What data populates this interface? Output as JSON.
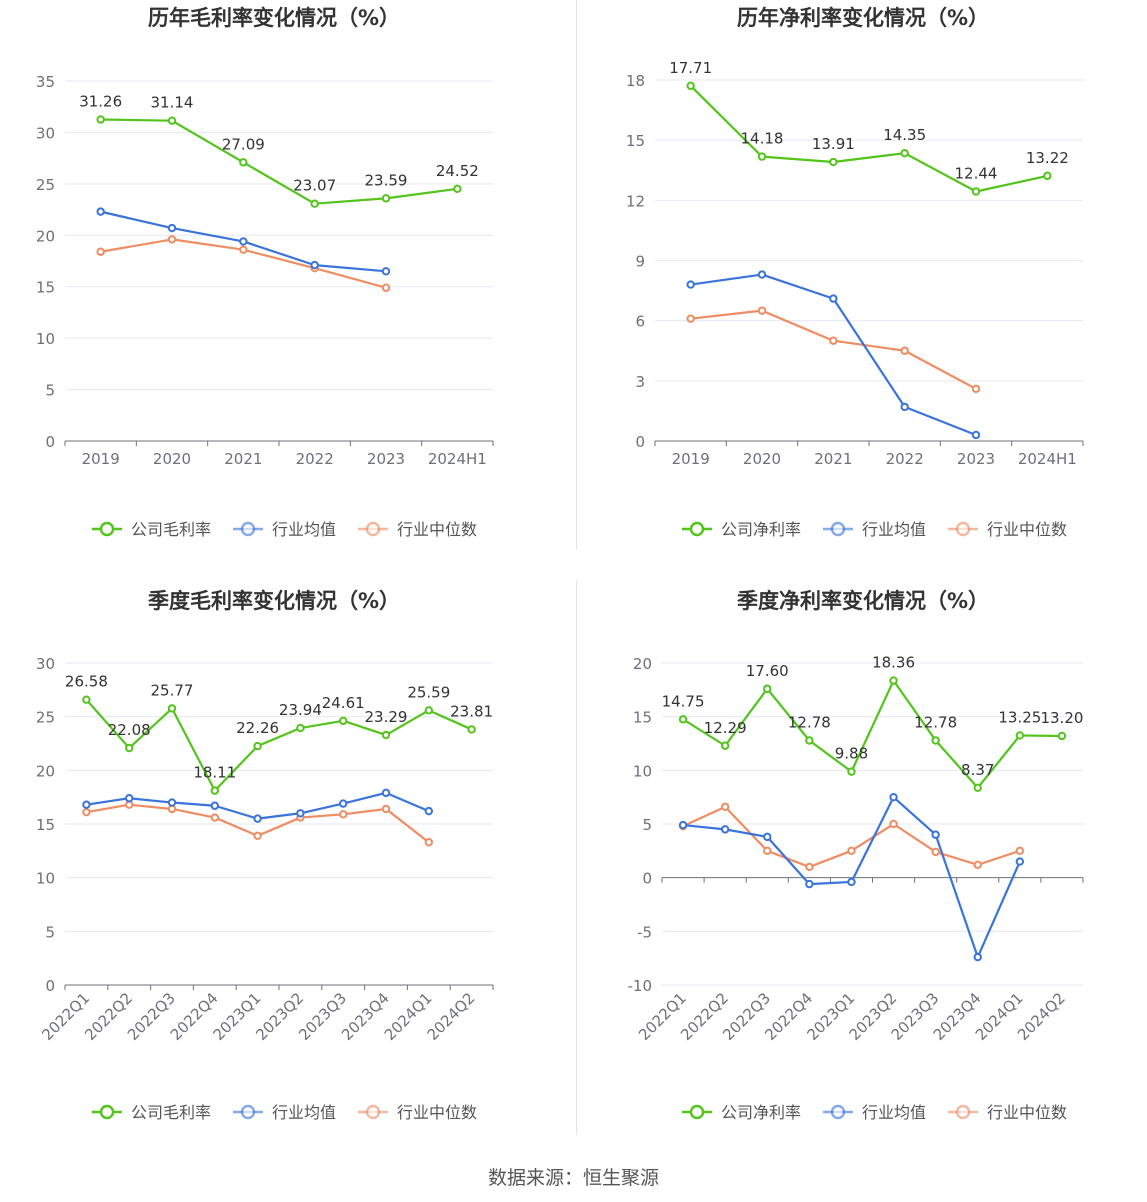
{
  "source": "数据来源：恒生聚源",
  "colors": {
    "company": "#52c41a",
    "industry_avg": "#3a73dc",
    "industry_median": "#f08c62",
    "grid": "#e6e9f2",
    "axis": "#6e7079",
    "title": "#333333"
  },
  "chart_data": [
    {
      "id": "annual-gross",
      "type": "line",
      "title": "历年毛利率变化情况（%）",
      "categories": [
        "2019",
        "2020",
        "2021",
        "2022",
        "2023",
        "2024H1"
      ],
      "ylim": [
        0,
        35
      ],
      "yticks": [
        0,
        5,
        10,
        15,
        20,
        25,
        30,
        35
      ],
      "legend_position": "bottom",
      "series": [
        {
          "name": "公司毛利率",
          "key": "company",
          "values": [
            31.26,
            31.14,
            27.09,
            23.07,
            23.59,
            24.52
          ],
          "labels": [
            "31.26",
            "31.14",
            "27.09",
            "23.07",
            "23.59",
            "24.52"
          ]
        },
        {
          "name": "行业均值",
          "key": "industry_avg",
          "values": [
            22.3,
            20.7,
            19.4,
            17.1,
            16.5,
            null
          ]
        },
        {
          "name": "行业中位数",
          "key": "industry_median",
          "values": [
            18.4,
            19.6,
            18.6,
            16.8,
            14.9,
            null
          ]
        }
      ]
    },
    {
      "id": "annual-net",
      "type": "line",
      "title": "历年净利率变化情况（%）",
      "categories": [
        "2019",
        "2020",
        "2021",
        "2022",
        "2023",
        "2024H1"
      ],
      "ylim": [
        0,
        18
      ],
      "yticks": [
        0,
        3,
        6,
        9,
        12,
        15,
        18
      ],
      "legend_position": "bottom",
      "series": [
        {
          "name": "公司净利率",
          "key": "company",
          "values": [
            17.71,
            14.18,
            13.91,
            14.35,
            12.44,
            13.22
          ],
          "labels": [
            "17.71",
            "14.18",
            "13.91",
            "14.35",
            "12.44",
            "13.22"
          ]
        },
        {
          "name": "行业均值",
          "key": "industry_avg",
          "values": [
            7.8,
            8.3,
            7.1,
            1.7,
            0.3,
            null
          ]
        },
        {
          "name": "行业中位数",
          "key": "industry_median",
          "values": [
            6.1,
            6.5,
            5.0,
            4.5,
            2.6,
            null
          ]
        }
      ]
    },
    {
      "id": "quarterly-gross",
      "type": "line",
      "title": "季度毛利率变化情况（%）",
      "categories": [
        "2022Q1",
        "2022Q2",
        "2022Q3",
        "2022Q4",
        "2023Q1",
        "2023Q2",
        "2023Q3",
        "2023Q4",
        "2024Q1",
        "2024Q2"
      ],
      "ylim": [
        0,
        30
      ],
      "yticks": [
        0,
        5,
        10,
        15,
        20,
        25,
        30
      ],
      "legend_position": "bottom",
      "series": [
        {
          "name": "公司毛利率",
          "key": "company",
          "values": [
            26.58,
            22.08,
            25.77,
            18.11,
            22.26,
            23.94,
            24.61,
            23.29,
            25.59,
            23.81
          ],
          "labels": [
            "26.58",
            "22.08",
            "25.77",
            "18.11",
            "22.26",
            "23.94",
            "24.61",
            "23.29",
            "25.59",
            "23.81"
          ]
        },
        {
          "name": "行业均值",
          "key": "industry_avg",
          "values": [
            16.8,
            17.4,
            17.0,
            16.7,
            15.5,
            16.0,
            16.9,
            17.9,
            16.2,
            null
          ]
        },
        {
          "name": "行业中位数",
          "key": "industry_median",
          "values": [
            16.1,
            16.8,
            16.4,
            15.6,
            13.9,
            15.6,
            15.9,
            16.4,
            13.3,
            null
          ]
        }
      ]
    },
    {
      "id": "quarterly-net",
      "type": "line",
      "title": "季度净利率变化情况（%）",
      "categories": [
        "2022Q1",
        "2022Q2",
        "2022Q3",
        "2022Q4",
        "2023Q1",
        "2023Q2",
        "2023Q3",
        "2023Q4",
        "2024Q1",
        "2024Q2"
      ],
      "ylim": [
        -10,
        20
      ],
      "yticks": [
        -10,
        -5,
        0,
        5,
        10,
        15,
        20
      ],
      "legend_position": "bottom",
      "series": [
        {
          "name": "公司净利率",
          "key": "company",
          "values": [
            14.75,
            12.29,
            17.6,
            12.78,
            9.88,
            18.36,
            12.78,
            8.37,
            13.25,
            13.2
          ],
          "labels": [
            "14.75",
            "12.29",
            "17.60",
            "12.78",
            "9.88",
            "18.36",
            "12.78",
            "8.37",
            "13.25",
            "13.20"
          ]
        },
        {
          "name": "行业均值",
          "key": "industry_avg",
          "values": [
            4.9,
            4.5,
            3.8,
            -0.6,
            -0.4,
            7.5,
            4.0,
            -7.4,
            1.5,
            null
          ]
        },
        {
          "name": "行业中位数",
          "key": "industry_median",
          "values": [
            4.8,
            6.6,
            2.5,
            1.0,
            2.5,
            5.0,
            2.4,
            1.2,
            2.5,
            null
          ]
        }
      ]
    }
  ]
}
